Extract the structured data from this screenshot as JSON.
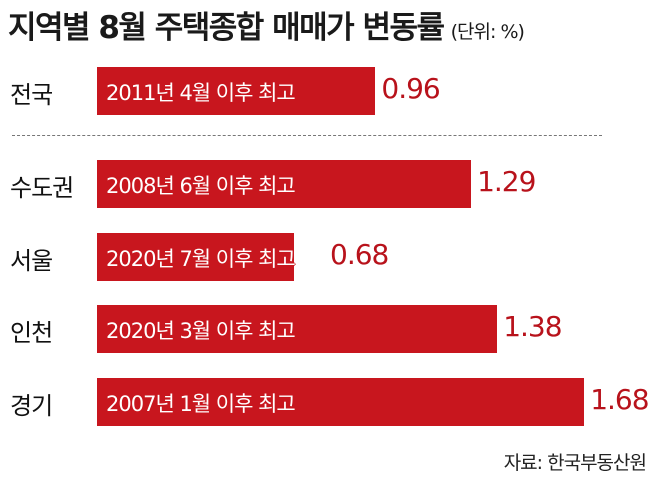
{
  "chart_data": {
    "type": "bar",
    "orientation": "horizontal",
    "title": "지역별 8월 주택종합 매매가 변동률",
    "unit": "(단위: %)",
    "categories": [
      "전국",
      "수도권",
      "서울",
      "인천",
      "경기"
    ],
    "values": [
      0.96,
      1.29,
      0.68,
      1.38,
      1.68
    ],
    "value_labels": [
      "0.96",
      "1.29",
      "0.68",
      "1.38",
      "1.68"
    ],
    "annotations": [
      "2011년 4월 이후 최고",
      "2008년 6월 이후 최고",
      "2020년 7월 이후 최고",
      "2020년 3월 이후 최고",
      "2007년 1월 이후 최고"
    ],
    "bar_color": "#c8161e",
    "value_color": "#b8121b",
    "source": "자료: 한국부동산원"
  }
}
